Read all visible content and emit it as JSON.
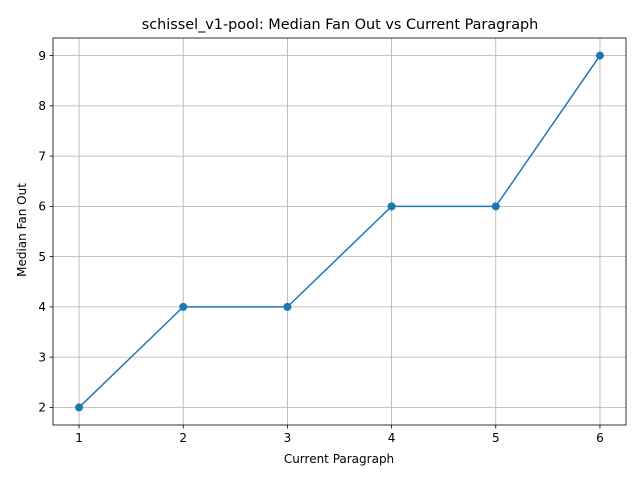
{
  "chart_data": {
    "type": "line",
    "title": "schissel_v1-pool: Median Fan Out vs Current Paragraph",
    "xlabel": "Current Paragraph",
    "ylabel": "Median Fan Out",
    "x": [
      1,
      2,
      3,
      4,
      5,
      6
    ],
    "series": [
      {
        "values": [
          2,
          4,
          4,
          6,
          6,
          9
        ]
      }
    ],
    "xlim": [
      0.75,
      6.25
    ],
    "ylim": [
      1.65,
      9.35
    ],
    "xticks": [
      "1",
      "2",
      "3",
      "4",
      "5",
      "6"
    ],
    "yticks": [
      "2",
      "3",
      "4",
      "5",
      "6",
      "7",
      "8",
      "9"
    ],
    "grid": true,
    "markers": true,
    "colors": {
      "series": "#1f77b4"
    }
  }
}
